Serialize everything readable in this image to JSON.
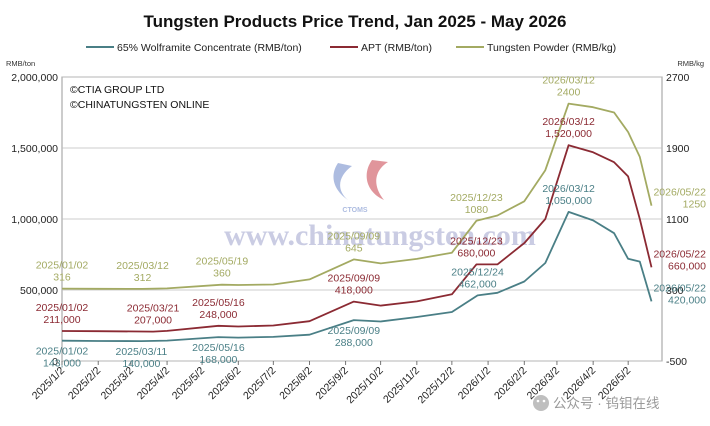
{
  "chart_data": {
    "type": "line",
    "title": "Tungsten Products Price Trend, Jan 2025 - May 2026",
    "left_unit": "RMB/ton",
    "right_unit": "RMB/kg",
    "left_axis": {
      "min": 0,
      "max": 2000000,
      "ticks": [
        0,
        500000,
        1000000,
        1500000,
        2000000
      ],
      "tick_labels": [
        "0",
        "500,000",
        "1,000,000",
        "1,500,000",
        "2,000,000"
      ]
    },
    "right_axis": {
      "min": -500,
      "max": 2700,
      "ticks": [
        -500,
        300,
        1100,
        1900,
        2700
      ],
      "tick_labels": [
        "-500",
        "300",
        "1100",
        "1900",
        "2700"
      ]
    },
    "x_ticks": [
      "2025/1/2",
      "2025/2/2",
      "2025/3/2",
      "2025/4/2",
      "2025/5/2",
      "2025/6/2",
      "2025/7/2",
      "2025/8/2",
      "2025/9/2",
      "2025/10/2",
      "2025/11/2",
      "2025/12/2",
      "2026/1/2",
      "2026/2/2",
      "2026/3/2",
      "2026/4/2",
      "2026/5/2"
    ],
    "x_range": [
      "2025/1/2",
      "2026/5/31"
    ],
    "grid": true,
    "legend_position": "top",
    "copyright": [
      "©CTIA GROUP LTD",
      "©CHINATUNGSTEN ONLINE"
    ],
    "watermark": "www.chinatungsten.com",
    "watermark_logo": "CTOMS",
    "social_tag": "公众号 · 钨钼在线",
    "series": [
      {
        "name": "65% Wolframite Concentrate (RMB/ton)",
        "color": "#4a7f86",
        "axis": "left",
        "points": [
          [
            "2025/1/2",
            143000
          ],
          [
            "2025/2/2",
            141000
          ],
          [
            "2025/3/11",
            140000
          ],
          [
            "2025/4/2",
            144000
          ],
          [
            "2025/5/16",
            168000
          ],
          [
            "2025/6/2",
            165000
          ],
          [
            "2025/7/2",
            170000
          ],
          [
            "2025/8/2",
            185000
          ],
          [
            "2025/9/9",
            288000
          ],
          [
            "2025/10/2",
            278000
          ],
          [
            "2025/11/2",
            310000
          ],
          [
            "2025/12/2",
            345000
          ],
          [
            "2025/12/24",
            462000
          ],
          [
            "2026/1/10",
            480000
          ],
          [
            "2026/2/2",
            560000
          ],
          [
            "2026/2/20",
            690000
          ],
          [
            "2026/3/12",
            1050000
          ],
          [
            "2026/4/2",
            990000
          ],
          [
            "2026/4/20",
            900000
          ],
          [
            "2026/5/2",
            720000
          ],
          [
            "2026/5/12",
            700000
          ],
          [
            "2026/5/22",
            420000
          ]
        ]
      },
      {
        "name": "APT (RMB/ton)",
        "color": "#8b2a33",
        "axis": "left",
        "points": [
          [
            "2025/1/2",
            211000
          ],
          [
            "2025/2/2",
            210000
          ],
          [
            "2025/3/21",
            207000
          ],
          [
            "2025/4/2",
            212000
          ],
          [
            "2025/5/16",
            248000
          ],
          [
            "2025/6/2",
            243000
          ],
          [
            "2025/7/2",
            250000
          ],
          [
            "2025/8/2",
            280000
          ],
          [
            "2025/9/9",
            418000
          ],
          [
            "2025/10/2",
            390000
          ],
          [
            "2025/11/2",
            420000
          ],
          [
            "2025/12/2",
            470000
          ],
          [
            "2025/12/23",
            680000
          ],
          [
            "2026/1/10",
            680000
          ],
          [
            "2026/2/2",
            830000
          ],
          [
            "2026/2/20",
            1000000
          ],
          [
            "2026/3/12",
            1520000
          ],
          [
            "2026/4/2",
            1470000
          ],
          [
            "2026/4/20",
            1400000
          ],
          [
            "2026/5/2",
            1300000
          ],
          [
            "2026/5/12",
            1000000
          ],
          [
            "2026/5/22",
            660000
          ]
        ]
      },
      {
        "name": "Tungsten Powder (RMB/kg)",
        "color": "#a3aa62",
        "axis": "right",
        "points": [
          [
            "2025/1/2",
            316
          ],
          [
            "2025/2/2",
            313
          ],
          [
            "2025/3/12",
            312
          ],
          [
            "2025/4/2",
            318
          ],
          [
            "2025/5/19",
            360
          ],
          [
            "2025/6/2",
            356
          ],
          [
            "2025/7/2",
            362
          ],
          [
            "2025/8/2",
            420
          ],
          [
            "2025/9/9",
            645
          ],
          [
            "2025/10/2",
            600
          ],
          [
            "2025/11/2",
            650
          ],
          [
            "2025/12/2",
            720
          ],
          [
            "2025/12/23",
            1080
          ],
          [
            "2026/1/10",
            1140
          ],
          [
            "2026/2/2",
            1300
          ],
          [
            "2026/2/20",
            1650
          ],
          [
            "2026/3/12",
            2400
          ],
          [
            "2026/4/2",
            2360
          ],
          [
            "2026/4/20",
            2300
          ],
          [
            "2026/5/2",
            2080
          ],
          [
            "2026/5/12",
            1800
          ],
          [
            "2026/5/22",
            1250
          ]
        ]
      }
    ],
    "annotations": [
      {
        "series": 2,
        "lines": [
          "2025/01/02",
          "316"
        ],
        "x": "2025/1/2",
        "side": "above"
      },
      {
        "series": 2,
        "lines": [
          "2025/03/12",
          "312"
        ],
        "x": "2025/3/12",
        "side": "above"
      },
      {
        "series": 2,
        "lines": [
          "2025/05/19",
          "360"
        ],
        "x": "2025/5/19",
        "side": "above"
      },
      {
        "series": 2,
        "lines": [
          "2025/09/09",
          "645"
        ],
        "x": "2025/9/9",
        "side": "above"
      },
      {
        "series": 2,
        "lines": [
          "2025/12/23",
          "1080"
        ],
        "x": "2025/12/23",
        "side": "above"
      },
      {
        "series": 2,
        "lines": [
          "2026/03/12",
          "2400"
        ],
        "x": "2026/3/12",
        "side": "above"
      },
      {
        "series": 2,
        "lines": [
          "2026/05/22",
          "1250"
        ],
        "x": "2026/5/22",
        "side": "right"
      },
      {
        "series": 1,
        "lines": [
          "2025/01/02",
          "211,000"
        ],
        "x": "2025/1/2",
        "side": "above"
      },
      {
        "series": 1,
        "lines": [
          "2025/03/21",
          "207,000"
        ],
        "x": "2025/3/21",
        "side": "above"
      },
      {
        "series": 1,
        "lines": [
          "2025/05/16",
          "248,000"
        ],
        "x": "2025/5/16",
        "side": "above"
      },
      {
        "series": 1,
        "lines": [
          "2025/09/09",
          "418,000"
        ],
        "x": "2025/9/9",
        "side": "above"
      },
      {
        "series": 1,
        "lines": [
          "2025/12/23",
          "680,000"
        ],
        "x": "2025/12/23",
        "side": "above"
      },
      {
        "series": 1,
        "lines": [
          "2026/03/12",
          "1,520,000"
        ],
        "x": "2026/3/12",
        "side": "above"
      },
      {
        "series": 1,
        "lines": [
          "2026/05/22",
          "660,000"
        ],
        "x": "2026/5/22",
        "side": "right"
      },
      {
        "series": 0,
        "lines": [
          "2025/01/02",
          "143,000"
        ],
        "x": "2025/1/2",
        "side": "below"
      },
      {
        "series": 0,
        "lines": [
          "2025/03/11",
          "140,000"
        ],
        "x": "2025/3/11",
        "side": "below"
      },
      {
        "series": 0,
        "lines": [
          "2025/05/16",
          "168,000"
        ],
        "x": "2025/5/16",
        "side": "below"
      },
      {
        "series": 0,
        "lines": [
          "2025/09/09",
          "288,000"
        ],
        "x": "2025/9/9",
        "side": "below"
      },
      {
        "series": 0,
        "lines": [
          "2025/12/24",
          "462,000"
        ],
        "x": "2025/12/24",
        "side": "above"
      },
      {
        "series": 0,
        "lines": [
          "2026/03/12",
          "1,050,000"
        ],
        "x": "2026/3/12",
        "side": "above"
      },
      {
        "series": 0,
        "lines": [
          "2026/05/22",
          "420,000"
        ],
        "x": "2026/5/22",
        "side": "right"
      }
    ]
  }
}
